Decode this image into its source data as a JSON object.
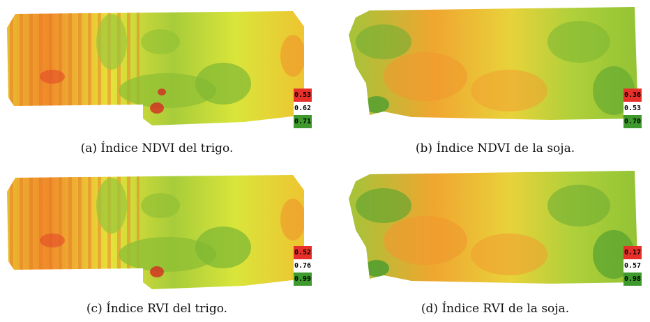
{
  "figures": [
    {
      "id": "a",
      "caption": "(a) Índice NDVI del trigo.",
      "legend": [
        "0.53",
        "0.62",
        "0.71"
      ]
    },
    {
      "id": "b",
      "caption": "(b) Índice NDVI de la soja.",
      "legend": [
        "0.36",
        "0.53",
        "0.70"
      ]
    },
    {
      "id": "c",
      "caption": "(c) Índice RVI del trigo.",
      "legend": [
        "0.52",
        "0.76",
        "0.99"
      ]
    },
    {
      "id": "d",
      "caption": "(d) Índice RVI de la soja.",
      "legend": [
        "0.17",
        "0.57",
        "0.98"
      ]
    }
  ],
  "colors": {
    "low": "#e8302a",
    "mid": "#f2ef3a",
    "high": "#3e9a2c"
  }
}
